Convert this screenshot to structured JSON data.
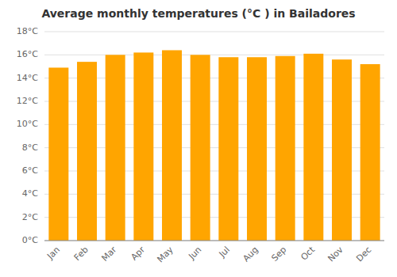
{
  "chart_data": {
    "type": "bar",
    "title": "Average monthly temperatures (°C ) in Bailadores",
    "categories": [
      "Jan",
      "Feb",
      "Mar",
      "Apr",
      "May",
      "Jun",
      "Jul",
      "Aug",
      "Sep",
      "Oct",
      "Nov",
      "Dec"
    ],
    "values": [
      14.9,
      15.4,
      16.0,
      16.2,
      16.4,
      16.0,
      15.8,
      15.8,
      15.9,
      16.1,
      15.6,
      15.2
    ],
    "color": "#FFA500",
    "ylim": [
      0,
      18
    ],
    "yticks": [
      {
        "value": 0,
        "label": "0°C"
      },
      {
        "value": 2,
        "label": "2°C"
      },
      {
        "value": 4,
        "label": "4°C"
      },
      {
        "value": 6,
        "label": "6°C"
      },
      {
        "value": 8,
        "label": "8°C"
      },
      {
        "value": 10,
        "label": "10°C"
      },
      {
        "value": 12,
        "label": "12°C"
      },
      {
        "value": 14,
        "label": "14°C"
      },
      {
        "value": 16,
        "label": "16°C"
      },
      {
        "value": 18,
        "label": "18°C"
      }
    ],
    "grid": true
  }
}
